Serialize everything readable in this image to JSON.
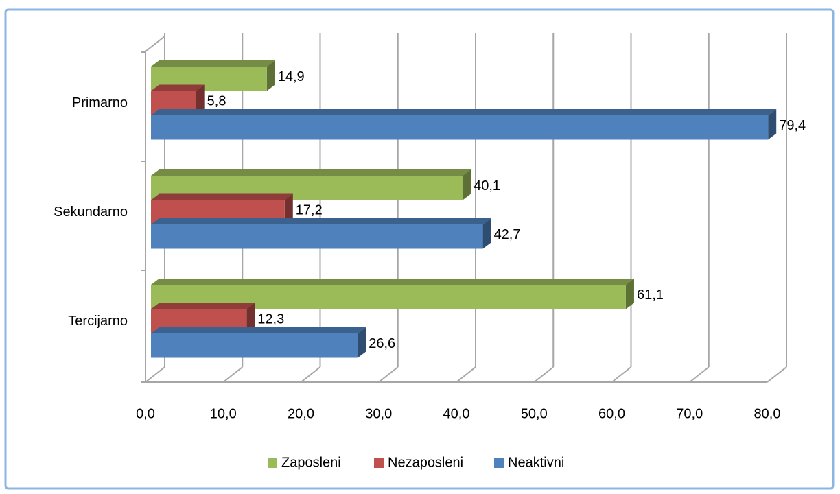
{
  "chart_data": {
    "type": "bar",
    "orientation": "horizontal",
    "three_d": true,
    "categories": [
      "Primarno",
      "Sekundarno",
      "Tercijarno"
    ],
    "series": [
      {
        "name": "Zaposleni",
        "color": "#9bbb59",
        "values": [
          14.9,
          40.1,
          61.1
        ],
        "value_labels": [
          "14,9",
          "40,1",
          "61,1"
        ]
      },
      {
        "name": "Nezaposleni",
        "color": "#c0504d",
        "values": [
          5.8,
          17.2,
          12.3
        ],
        "value_labels": [
          "5,8",
          "17,2",
          "12,3"
        ]
      },
      {
        "name": "Neaktivni",
        "color": "#4f81bd",
        "values": [
          79.4,
          42.7,
          26.6
        ],
        "value_labels": [
          "79,4",
          "42,7",
          "26,6"
        ]
      }
    ],
    "xlim": [
      0,
      80
    ],
    "xticks": [
      {
        "value": 0,
        "label": "0,0"
      },
      {
        "value": 10,
        "label": "10,0"
      },
      {
        "value": 20,
        "label": "20,0"
      },
      {
        "value": 30,
        "label": "30,0"
      },
      {
        "value": 40,
        "label": "40,0"
      },
      {
        "value": 50,
        "label": "50,0"
      },
      {
        "value": 60,
        "label": "60,0"
      },
      {
        "value": 70,
        "label": "70,0"
      },
      {
        "value": 80,
        "label": "80,0"
      }
    ],
    "grid": true,
    "legend": "bottom"
  }
}
